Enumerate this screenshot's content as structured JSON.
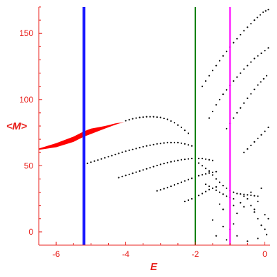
{
  "chart_data": {
    "type": "scatter",
    "xlabel": "E",
    "ylabel": "<M>",
    "xlim": [
      -6.5,
      0.15
    ],
    "ylim": [
      -10,
      170
    ],
    "x_ticks": [
      -6,
      -4,
      -2,
      0
    ],
    "y_ticks": [
      0,
      50,
      100,
      150
    ],
    "x_tick_labels": [
      "-6",
      "-4",
      "-2",
      "0"
    ],
    "y_tick_labels": [
      "0",
      "50",
      "100",
      "150"
    ],
    "grid": false,
    "colors": {
      "axis": "#e8201c",
      "red_band": "#ff0000",
      "points": "#000000",
      "line_blue": "#1a1aff",
      "line_green": "#008000",
      "line_magenta": "#ff00ff"
    },
    "vertical_lines": [
      {
        "x": -5.2,
        "color": "#1a1aff"
      },
      {
        "x": -2.0,
        "color": "#008000"
      },
      {
        "x": -1.0,
        "color": "#ff00ff"
      }
    ],
    "red_band": {
      "upper": [
        [
          -6.5,
          63
        ],
        [
          -6.0,
          67
        ],
        [
          -5.5,
          72
        ],
        [
          -5.2,
          76
        ],
        [
          -5.0,
          78
        ],
        [
          -4.6,
          80
        ],
        [
          -4.3,
          82
        ],
        [
          -4.05,
          83
        ]
      ],
      "lower": [
        [
          -4.05,
          83
        ],
        [
          -4.3,
          81
        ],
        [
          -4.6,
          78
        ],
        [
          -5.0,
          74
        ],
        [
          -5.2,
          72
        ],
        [
          -5.5,
          68
        ],
        [
          -6.0,
          64
        ],
        [
          -6.5,
          62
        ]
      ]
    },
    "series": [
      {
        "points": [
          [
            -4.0,
            84
          ],
          [
            -3.8,
            85.5
          ],
          [
            -3.6,
            86.5
          ],
          [
            -3.4,
            87
          ],
          [
            -3.2,
            87
          ],
          [
            -3.0,
            86.5
          ],
          [
            -2.8,
            85
          ],
          [
            -2.6,
            82.5
          ],
          [
            -2.4,
            79
          ],
          [
            -2.2,
            74.5
          ]
        ]
      },
      {
        "points": [
          [
            -5.2,
            51
          ],
          [
            -4.9,
            53.5
          ],
          [
            -4.6,
            56
          ],
          [
            -4.3,
            58.5
          ],
          [
            -4.0,
            61
          ],
          [
            -3.7,
            63
          ],
          [
            -3.4,
            65
          ],
          [
            -3.1,
            66.5
          ],
          [
            -2.8,
            67.5
          ],
          [
            -2.5,
            67.5
          ],
          [
            -2.3,
            66.5
          ],
          [
            -2.1,
            65
          ]
        ]
      },
      {
        "points": [
          [
            -4.2,
            41
          ],
          [
            -3.9,
            43.5
          ],
          [
            -3.6,
            46
          ],
          [
            -3.3,
            48.5
          ],
          [
            -3.0,
            51
          ],
          [
            -2.7,
            53
          ],
          [
            -2.4,
            54.5
          ],
          [
            -2.1,
            55.5
          ],
          [
            -1.8,
            55.5
          ],
          [
            -1.5,
            54
          ]
        ]
      },
      {
        "points": [
          [
            -3.1,
            31
          ],
          [
            -2.8,
            33.5
          ],
          [
            -2.5,
            36.5
          ],
          [
            -2.2,
            39.5
          ],
          [
            -1.9,
            42.5
          ],
          [
            -1.6,
            44.5
          ],
          [
            -1.4,
            45.5
          ]
        ]
      },
      {
        "points": [
          [
            -2.3,
            23
          ],
          [
            -2.0,
            26
          ],
          [
            -1.8,
            29
          ],
          [
            -1.6,
            32
          ],
          [
            -1.4,
            34
          ]
        ]
      },
      {
        "points": [
          [
            -1.8,
            110
          ],
          [
            -1.5,
            122
          ],
          [
            -1.2,
            133
          ],
          [
            -0.9,
            143
          ],
          [
            -0.6,
            152
          ],
          [
            -0.3,
            160
          ],
          [
            -0.05,
            166
          ],
          [
            0.1,
            168
          ]
        ]
      },
      {
        "points": [
          [
            -1.6,
            86
          ],
          [
            -1.4,
            96
          ],
          [
            -1.2,
            104
          ],
          [
            -0.9,
            114
          ],
          [
            -0.6,
            123
          ],
          [
            -0.3,
            131
          ],
          [
            0.0,
            137
          ],
          [
            0.1,
            139
          ]
        ]
      },
      {
        "points": [
          [
            -1.1,
            78
          ],
          [
            -0.8,
            90
          ],
          [
            -0.5,
            101
          ],
          [
            -0.2,
            111
          ],
          [
            0.05,
            118
          ]
        ]
      },
      {
        "points": [
          [
            -0.6,
            60
          ],
          [
            -0.3,
            68
          ],
          [
            0.0,
            76
          ],
          [
            0.1,
            79
          ]
        ]
      },
      {
        "points": [
          [
            -1.9,
            52
          ],
          [
            -1.6,
            46
          ],
          [
            -1.4,
            40
          ],
          [
            -1.2,
            35
          ],
          [
            -1.0,
            31
          ],
          [
            -0.8,
            29
          ],
          [
            -0.5,
            28
          ],
          [
            -0.2,
            27
          ]
        ]
      },
      {
        "points": [
          [
            -1.7,
            36
          ],
          [
            -1.5,
            33
          ],
          [
            -1.3,
            30
          ],
          [
            -1.1,
            27
          ],
          [
            -0.9,
            25
          ]
        ]
      },
      {
        "points": [
          [
            -1.5,
            9
          ],
          [
            -1.2,
            4
          ],
          [
            -1.0,
            2
          ],
          [
            -0.9,
            6
          ],
          [
            -0.8,
            14
          ],
          [
            -0.7,
            22
          ],
          [
            -0.6,
            27
          ],
          [
            -0.5,
            25
          ],
          [
            -0.4,
            20
          ],
          [
            -0.3,
            15
          ],
          [
            -0.2,
            10
          ],
          [
            -0.1,
            5
          ],
          [
            0.0,
            2
          ]
        ]
      },
      {
        "points": [
          [
            -1.4,
            -3
          ],
          [
            -1.1,
            -6
          ],
          [
            -0.8,
            -3
          ],
          [
            -0.5,
            -7
          ],
          [
            -0.2,
            -5
          ],
          [
            0.05,
            -2
          ],
          [
            -1.2,
            17
          ],
          [
            -0.9,
            20
          ],
          [
            -0.6,
            19
          ],
          [
            -0.3,
            17
          ],
          [
            0.0,
            13
          ],
          [
            0.1,
            10
          ],
          [
            -0.4,
            30
          ],
          [
            -0.1,
            33
          ],
          [
            -0.2,
            23
          ],
          [
            -1.3,
            21
          ]
        ]
      }
    ]
  }
}
